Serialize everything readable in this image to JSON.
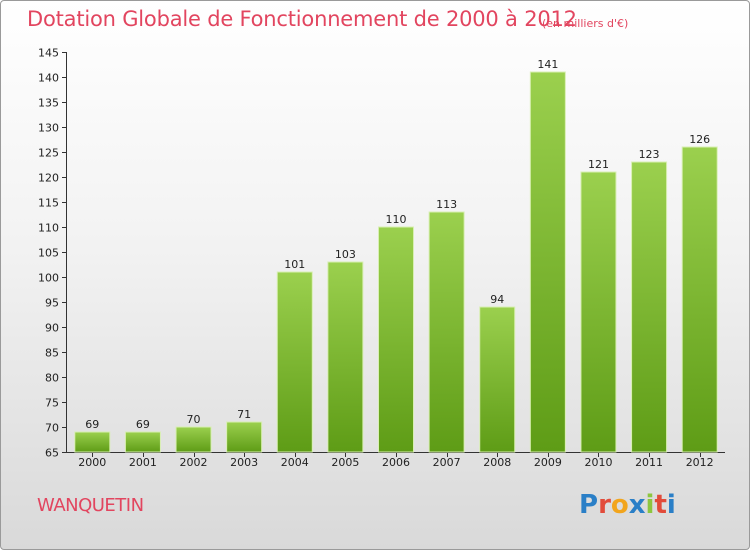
{
  "header": {
    "title": "Dotation Globale de Fonctionnement de 2000 à 2012",
    "unit": "(en milliers d'€)"
  },
  "footer": {
    "commune": "WANQUETIN",
    "logo_letters": [
      "P",
      "r",
      "o",
      "x",
      "i",
      "t",
      "i"
    ],
    "logo_colors": [
      "#2a7fc7",
      "#e24b3a",
      "#f2a51d",
      "#2a7fc7",
      "#8dc63f",
      "#e24b3a",
      "#2a7fc7"
    ]
  },
  "colors": {
    "title": "#e2455f",
    "bar_light": "#9bd04e",
    "bar_dark": "#5e9c16",
    "bar_edge": "#d8efb2"
  },
  "chart_data": {
    "type": "bar",
    "title": "Dotation Globale de Fonctionnement de 2000 à 2012",
    "subtitle": "(en milliers d'€)",
    "xlabel": "",
    "ylabel": "",
    "categories": [
      "2000",
      "2001",
      "2002",
      "2003",
      "2004",
      "2005",
      "2006",
      "2007",
      "2008",
      "2009",
      "2010",
      "2011",
      "2012"
    ],
    "values": [
      69,
      69,
      70,
      71,
      101,
      103,
      110,
      113,
      94,
      141,
      121,
      123,
      126
    ],
    "ylim": [
      65,
      145
    ],
    "yticks": [
      65,
      70,
      75,
      80,
      85,
      90,
      95,
      100,
      105,
      110,
      115,
      120,
      125,
      130,
      135,
      140,
      145
    ],
    "grid": false,
    "data_labels": true
  }
}
